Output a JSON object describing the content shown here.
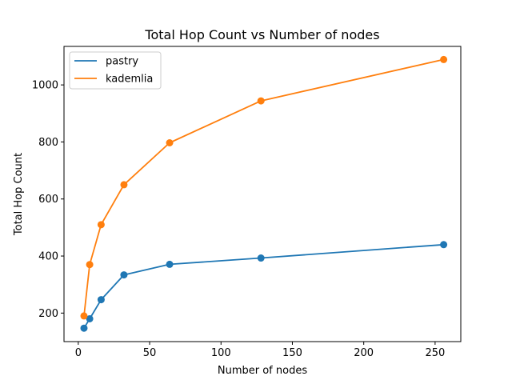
{
  "chart_data": {
    "type": "line",
    "title": "Total Hop Count vs Number of nodes",
    "xlabel": "Number of nodes",
    "ylabel": "Total Hop Count",
    "xlim": [
      -10,
      268
    ],
    "ylim": [
      100,
      1135
    ],
    "x_ticks": [
      0,
      50,
      100,
      150,
      200,
      250
    ],
    "y_ticks": [
      200,
      400,
      600,
      800,
      1000
    ],
    "grid": false,
    "legend_position": "top-left",
    "x": [
      4,
      8,
      16,
      32,
      64,
      128,
      256
    ],
    "series": [
      {
        "name": "pastry",
        "color": "#1f77b4",
        "values": [
          147,
          180,
          247,
          334,
          371,
          393,
          440
        ]
      },
      {
        "name": "kademlia",
        "color": "#ff7f0e",
        "values": [
          190,
          370,
          510,
          650,
          797,
          944,
          1089
        ]
      }
    ]
  }
}
